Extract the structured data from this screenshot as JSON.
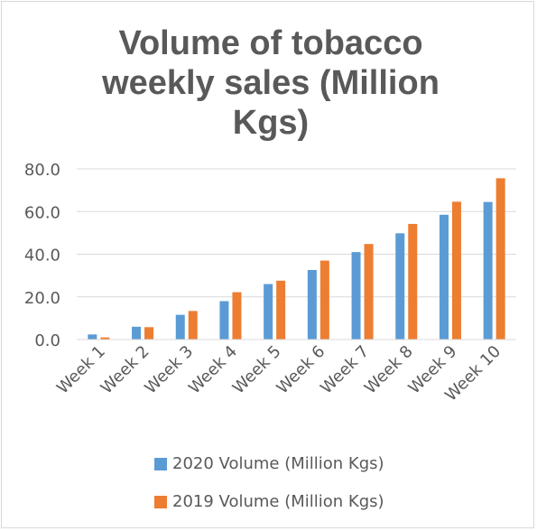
{
  "chart_data": {
    "type": "bar",
    "title": "Volume of tobacco weekly sales (Million Kgs)",
    "categories": [
      "Week 1",
      "Week 2",
      "Week 3",
      "Week 4",
      "Week 5",
      "Week 6",
      "Week 7",
      "Week 8",
      "Week 9",
      "Week 10"
    ],
    "series": [
      {
        "name": "2020 Volume (Million Kgs)",
        "color": "#5b9bd5",
        "values": [
          2.4,
          6.0,
          11.6,
          18.0,
          26.0,
          32.6,
          41.0,
          49.8,
          58.5,
          64.5
        ]
      },
      {
        "name": "2019 Volume (Million Kgs)",
        "color": "#ed7d31",
        "values": [
          1.0,
          5.8,
          13.4,
          22.2,
          27.6,
          37.0,
          44.8,
          54.2,
          64.6,
          75.6
        ]
      }
    ],
    "yticks": [
      "0.0",
      "20.0",
      "40.0",
      "60.0",
      "80.0"
    ],
    "ylim": [
      0,
      80
    ],
    "grid": true,
    "legend_position": "bottom",
    "gridline_color": "#d9d9d9",
    "text_color": "#595959"
  }
}
